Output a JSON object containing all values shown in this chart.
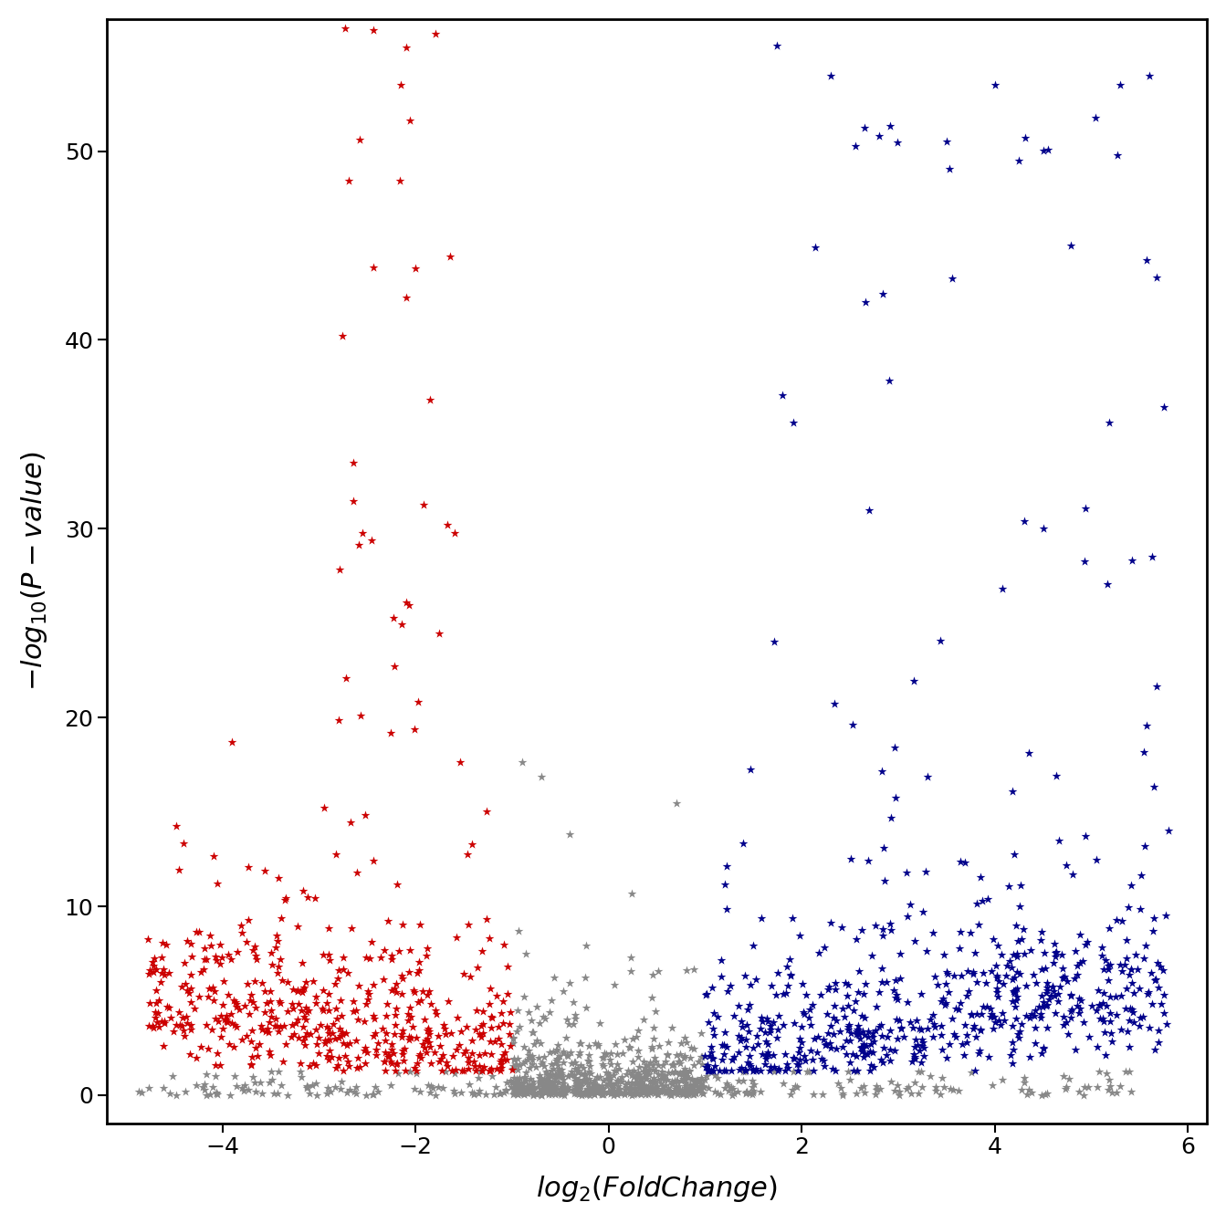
{
  "xlabel": "log_{2}(FoldChange)",
  "ylabel": "-log_{10}(P-value)",
  "xlim": [
    -5.2,
    6.2
  ],
  "ylim": [
    -1.5,
    57
  ],
  "xticks": [
    -4,
    -2,
    0,
    2,
    4,
    6
  ],
  "yticks": [
    0,
    10,
    20,
    30,
    40,
    50
  ],
  "fc_threshold": 1.0,
  "pval_threshold": 1.301,
  "color_up": "#00008B",
  "color_down": "#CC0000",
  "color_ns": "#888888",
  "marker": "*",
  "markersize_large": 55,
  "markersize_small": 18,
  "seed": 2023,
  "background_color": "#ffffff",
  "label_fontsize": 22,
  "tick_fontsize": 18
}
